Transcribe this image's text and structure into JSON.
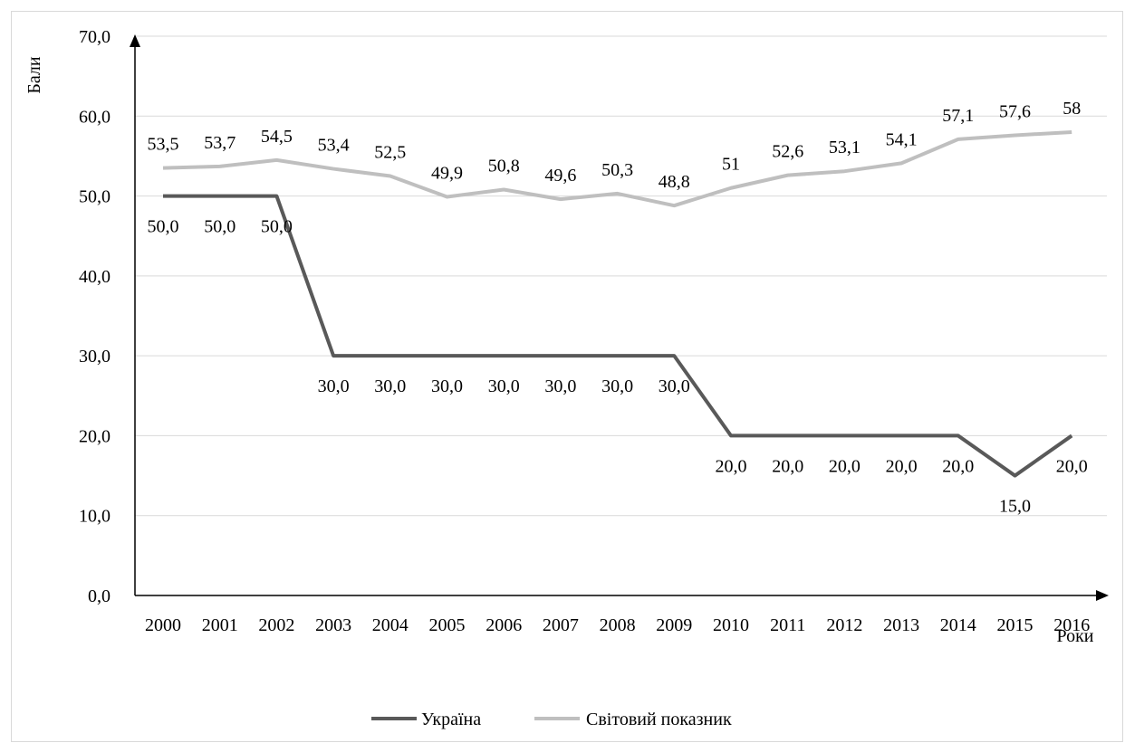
{
  "chart_data": {
    "type": "line",
    "title": "",
    "xlabel": "Роки",
    "ylabel": "Бали",
    "ylim": [
      0,
      70
    ],
    "yticks": [
      "0,0",
      "10,0",
      "20,0",
      "30,0",
      "40,0",
      "50,0",
      "60,0",
      "70,0"
    ],
    "grid": true,
    "legend_position": "bottom",
    "categories": [
      "2000",
      "2001",
      "2002",
      "2003",
      "2004",
      "2005",
      "2006",
      "2007",
      "2008",
      "2009",
      "2010",
      "2011",
      "2012",
      "2013",
      "2014",
      "2015",
      "2016"
    ],
    "series": [
      {
        "name": "Україна",
        "color": "#595959",
        "values": [
          50,
          50,
          50,
          30,
          30,
          30,
          30,
          30,
          30,
          30,
          20,
          20,
          20,
          20,
          20,
          15,
          20
        ],
        "labels": [
          "50,0",
          "50,0",
          "50,0",
          "30,0",
          "30,0",
          "30,0",
          "30,0",
          "30,0",
          "30,0",
          "30,0",
          "20,0",
          "20,0",
          "20,0",
          "20,0",
          "20,0",
          "15,0",
          "20,0"
        ]
      },
      {
        "name": "Світовий показник",
        "color": "#bfbfbf",
        "values": [
          53.5,
          53.7,
          54.5,
          53.4,
          52.5,
          49.9,
          50.8,
          49.6,
          50.3,
          48.8,
          51,
          52.6,
          53.1,
          54.1,
          57.1,
          57.6,
          58
        ],
        "labels": [
          "53,5",
          "53,7",
          "54,5",
          "53,4",
          "52,5",
          "49,9",
          "50,8",
          "49,6",
          "50,3",
          "48,8",
          "51",
          "52,6",
          "53,1",
          "54,1",
          "57,1",
          "57,6",
          "58"
        ]
      }
    ]
  }
}
